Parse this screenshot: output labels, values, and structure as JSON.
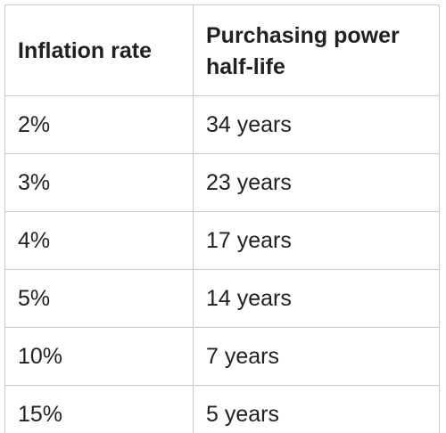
{
  "table": {
    "header": [
      "Inflation rate",
      "Purchasing power half-life"
    ],
    "rows": [
      [
        "2%",
        "34 years"
      ],
      [
        "3%",
        "23 years"
      ],
      [
        "4%",
        "17 years"
      ],
      [
        "5%",
        "14 years"
      ],
      [
        "10%",
        "7 years"
      ],
      [
        "15%",
        "5 years"
      ]
    ]
  }
}
